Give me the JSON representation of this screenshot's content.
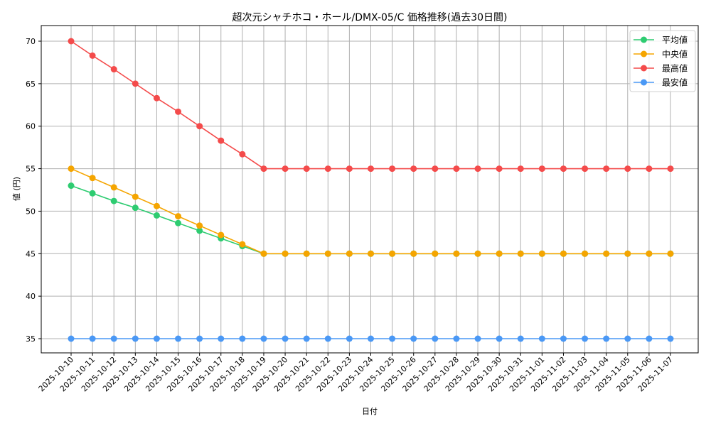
{
  "chart_data": {
    "type": "line",
    "title": "超次元シャチホコ・ホール/DMX-05/C 価格推移(過去30日間)",
    "xlabel": "日付",
    "ylabel": "値 (円)",
    "ylim": [
      33.25,
      71.75
    ],
    "yticks": [
      35,
      40,
      45,
      50,
      55,
      60,
      65,
      70
    ],
    "grid": true,
    "legend_position": "upper right",
    "x": [
      "2025-10-10",
      "2025-10-11",
      "2025-10-12",
      "2025-10-13",
      "2025-10-14",
      "2025-10-15",
      "2025-10-16",
      "2025-10-17",
      "2025-10-18",
      "2025-10-19",
      "2025-10-20",
      "2025-10-21",
      "2025-10-22",
      "2025-10-23",
      "2025-10-24",
      "2025-10-25",
      "2025-10-26",
      "2025-10-27",
      "2025-10-28",
      "2025-10-29",
      "2025-10-30",
      "2025-10-31",
      "2025-11-01",
      "2025-11-02",
      "2025-11-03",
      "2025-11-04",
      "2025-11-05",
      "2025-11-06",
      "2025-11-07"
    ],
    "series": [
      {
        "name": "平均値",
        "color": "#2ecc71",
        "values": [
          53.0,
          52.1,
          51.2,
          50.4,
          49.5,
          48.6,
          47.7,
          46.8,
          45.9,
          45,
          45,
          45,
          45,
          45,
          45,
          45,
          45,
          45,
          45,
          45,
          45,
          45,
          45,
          45,
          45,
          45,
          45,
          45,
          45
        ]
      },
      {
        "name": "中央値",
        "color": "#f5a500",
        "values": [
          55.0,
          53.9,
          52.8,
          51.7,
          50.6,
          49.4,
          48.3,
          47.2,
          46.1,
          45,
          45,
          45,
          45,
          45,
          45,
          45,
          45,
          45,
          45,
          45,
          45,
          45,
          45,
          45,
          45,
          45,
          45,
          45,
          45
        ]
      },
      {
        "name": "最高値",
        "color": "#f44b4b",
        "values": [
          70.0,
          68.3,
          66.7,
          65.0,
          63.3,
          61.7,
          60.0,
          58.3,
          56.7,
          55,
          55,
          55,
          55,
          55,
          55,
          55,
          55,
          55,
          55,
          55,
          55,
          55,
          55,
          55,
          55,
          55,
          55,
          55,
          55
        ]
      },
      {
        "name": "最安値",
        "color": "#4a98f5",
        "values": [
          35,
          35,
          35,
          35,
          35,
          35,
          35,
          35,
          35,
          35,
          35,
          35,
          35,
          35,
          35,
          35,
          35,
          35,
          35,
          35,
          35,
          35,
          35,
          35,
          35,
          35,
          35,
          35,
          35
        ]
      }
    ]
  }
}
